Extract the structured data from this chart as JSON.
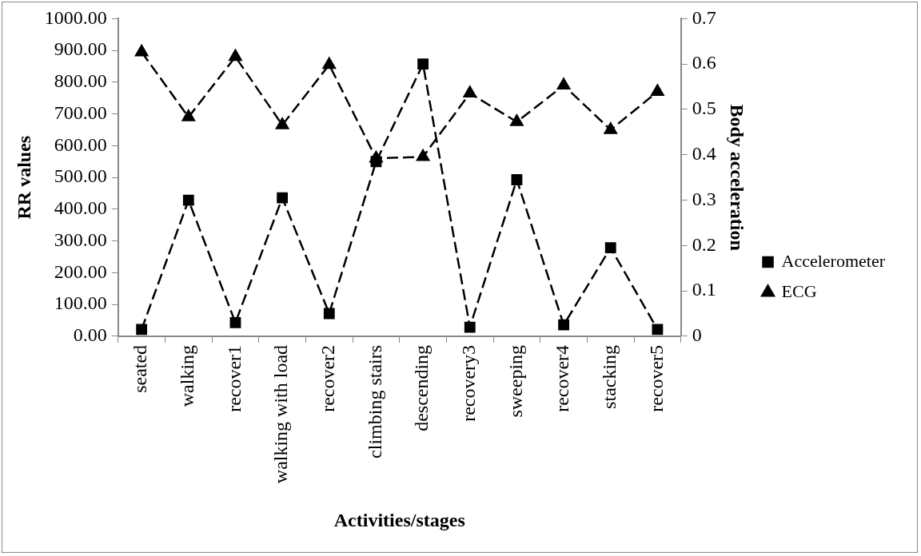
{
  "chart_data": {
    "type": "line",
    "xlabel": "Activities/stages",
    "ylabel": "RR values",
    "y2label": "Body acceleration",
    "categories": [
      "seated",
      "walking",
      "recover1",
      "walking with load",
      "recover2",
      "climbing stairs",
      "descending",
      "recovery3",
      "sweeping",
      "recover4",
      "stacking",
      "recover5"
    ],
    "series": [
      {
        "name": "ECG",
        "color": "#000000",
        "marker": "triangle",
        "line_style": "dashed",
        "values": [
          895,
          690,
          880,
          665,
          855,
          560,
          565,
          765,
          675,
          790,
          650,
          770
        ]
      },
      {
        "name": "Accelerometer",
        "color": "#000000",
        "marker": "square",
        "line_style": "dashed",
        "axis": "y2",
        "values": [
          0.015,
          0.3,
          0.03,
          0.305,
          0.05,
          0.385,
          0.6,
          0.02,
          0.345,
          0.025,
          0.195,
          0.015
        ]
      }
    ],
    "ylim": [
      0,
      1000
    ],
    "yticks": [
      {
        "value": 0,
        "label": "0.00"
      },
      {
        "value": 100,
        "label": "100.00"
      },
      {
        "value": 200,
        "label": "200.00"
      },
      {
        "value": 300,
        "label": "300.00"
      },
      {
        "value": 400,
        "label": "400.00"
      },
      {
        "value": 500,
        "label": "500.00"
      },
      {
        "value": 600,
        "label": "600.00"
      },
      {
        "value": 700,
        "label": "700.00"
      },
      {
        "value": 800,
        "label": "800.00"
      },
      {
        "value": 900,
        "label": "900.00"
      },
      {
        "value": 1000,
        "label": "1000.00"
      }
    ],
    "y2lim": [
      0,
      0.7
    ],
    "y2ticks": [
      0,
      0.1,
      0.2,
      0.3,
      0.4,
      0.5,
      0.6,
      0.7
    ],
    "grid": false,
    "legend": "right"
  }
}
